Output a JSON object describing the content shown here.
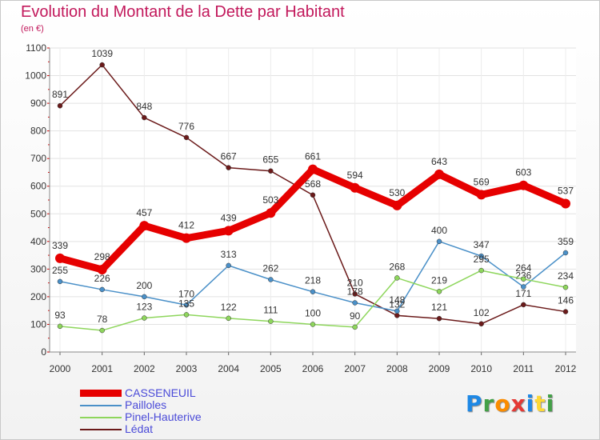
{
  "chart_data": {
    "type": "line",
    "title": "Evolution du Montant de la Dette par Habitant",
    "subtitle": "(en €)",
    "xlabel": "",
    "ylabel": "",
    "ylim": [
      0,
      1100
    ],
    "yticks": [
      0,
      100,
      200,
      300,
      400,
      500,
      600,
      700,
      800,
      900,
      1000,
      1100
    ],
    "grid": true,
    "categories": [
      "2000",
      "2001",
      "2002",
      "2003",
      "2004",
      "2005",
      "2006",
      "2007",
      "2008",
      "2009",
      "2010",
      "2011",
      "2012"
    ],
    "series": [
      {
        "name": "CASSENEUIL",
        "color": "#e60000",
        "values": [
          339,
          298,
          457,
          412,
          439,
          503,
          661,
          594,
          530,
          643,
          569,
          603,
          537
        ]
      },
      {
        "name": "Pailloles",
        "color": "#4a90c8",
        "values": [
          255,
          226,
          200,
          170,
          313,
          262,
          218,
          178,
          148,
          400,
          347,
          236,
          359
        ]
      },
      {
        "name": "Pinel-Hauterive",
        "color": "#8ed65c",
        "values": [
          93,
          78,
          123,
          135,
          122,
          111,
          100,
          90,
          268,
          219,
          295,
          264,
          234
        ]
      },
      {
        "name": "Lédat",
        "color": "#6b1a1a",
        "values": [
          891,
          1039,
          848,
          776,
          667,
          655,
          568,
          210,
          132,
          121,
          102,
          171,
          146
        ]
      }
    ]
  },
  "legend": {
    "items": [
      {
        "label": "CASSENEUIL"
      },
      {
        "label": "Pailloles"
      },
      {
        "label": "Pinel-Hauterive"
      },
      {
        "label": "Lédat"
      }
    ]
  },
  "logo": {
    "text": "Proxiti",
    "letters": [
      "P",
      "r",
      "o",
      "x",
      "i",
      "t",
      "i"
    ]
  }
}
